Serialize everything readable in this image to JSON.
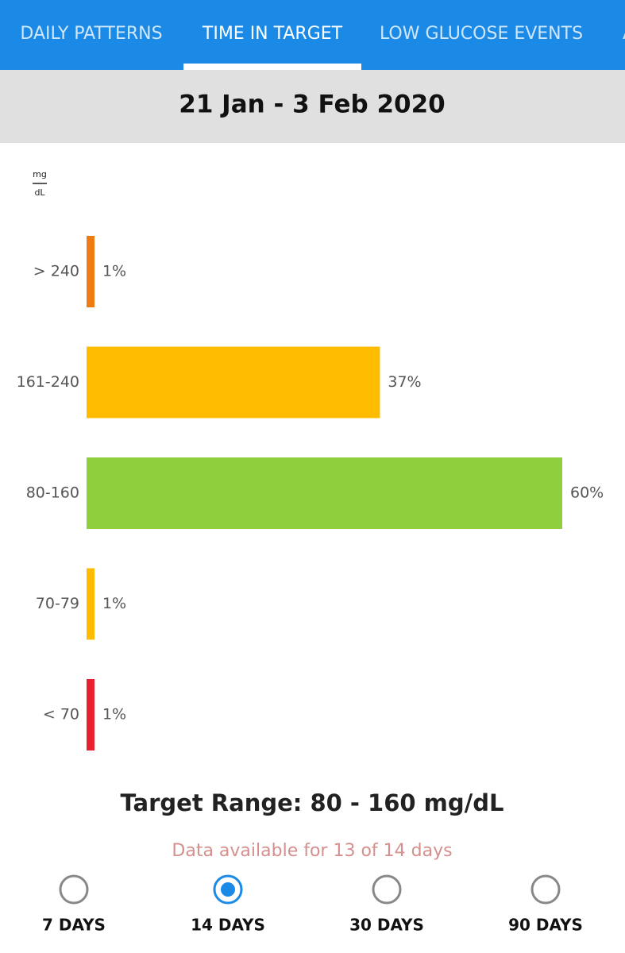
{
  "tabs": [
    "DAILY PATTERNS",
    "TIME IN TARGET",
    "LOW GLUCOSE EVENTS",
    "A"
  ],
  "active_tab": 1,
  "date_range": "21 Jan - 3 Feb 2020",
  "chart_data": {
    "type": "bar",
    "orientation": "horizontal",
    "unit_top": "mg",
    "unit_bottom": "dL",
    "categories": [
      "> 240",
      "161-240",
      "80-160",
      "70-79",
      "< 70"
    ],
    "values": [
      1,
      37,
      60,
      1,
      1
    ],
    "value_labels": [
      "1%",
      "37%",
      "60%",
      "1%",
      "1%"
    ],
    "colors": [
      "#f07b10",
      "#ffbb00",
      "#8fce3c",
      "#ffbb00",
      "#e8212f"
    ]
  },
  "target_range": "Target Range: 80 - 160 mg/dL",
  "availability": "Data available for 13 of 14 days",
  "periods": [
    {
      "label": "7 DAYS",
      "selected": false
    },
    {
      "label": "14 DAYS",
      "selected": true
    },
    {
      "label": "30 DAYS",
      "selected": false
    },
    {
      "label": "90 DAYS",
      "selected": false
    }
  ]
}
